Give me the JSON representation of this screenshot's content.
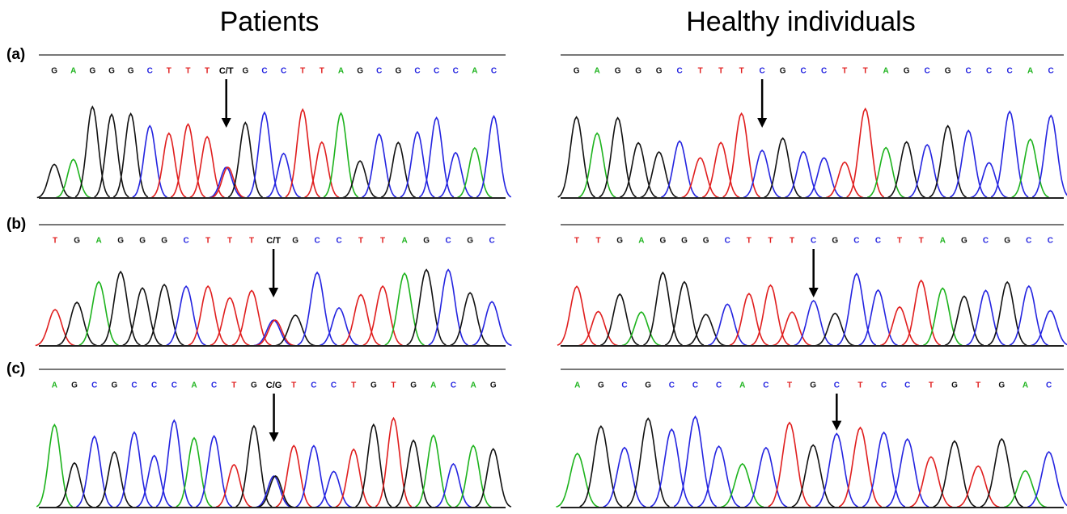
{
  "columns": [
    {
      "title": "Patients"
    },
    {
      "title": "Healthy individuals"
    }
  ],
  "rows": [
    {
      "label": "(a)",
      "panels": [
        {
          "bases": [
            "G",
            "A",
            "G",
            "G",
            "G",
            "C",
            "T",
            "T",
            "T",
            "C/T",
            "G",
            "C",
            "C",
            "T",
            "T",
            "A",
            "G",
            "C",
            "G",
            "C",
            "C",
            "C",
            "A",
            "C"
          ]
        },
        {
          "bases": [
            "G",
            "A",
            "G",
            "G",
            "G",
            "C",
            "T",
            "T",
            "T",
            "C",
            "G",
            "C",
            "C",
            "T",
            "T",
            "A",
            "G",
            "C",
            "G",
            "C",
            "C",
            "C",
            "A",
            "C"
          ]
        }
      ]
    },
    {
      "label": "(b)",
      "panels": [
        {
          "bases": [
            "T",
            "G",
            "A",
            "G",
            "G",
            "G",
            "C",
            "T",
            "T",
            "T",
            "C/T",
            "G",
            "C",
            "C",
            "T",
            "T",
            "A",
            "G",
            "C",
            "G",
            "C"
          ]
        },
        {
          "bases": [
            "T",
            "T",
            "G",
            "A",
            "G",
            "G",
            "G",
            "C",
            "T",
            "T",
            "T",
            "C",
            "G",
            "C",
            "C",
            "T",
            "T",
            "A",
            "G",
            "C",
            "G",
            "C",
            "C"
          ]
        }
      ]
    },
    {
      "label": "(c)",
      "panels": [
        {
          "bases": [
            "A",
            "G",
            "C",
            "G",
            "C",
            "C",
            "C",
            "A",
            "C",
            "T",
            "G",
            "C/G",
            "T",
            "C",
            "C",
            "T",
            "G",
            "T",
            "G",
            "A",
            "C",
            "A",
            "G"
          ]
        },
        {
          "bases": [
            "A",
            "G",
            "C",
            "G",
            "C",
            "C",
            "C",
            "A",
            "C",
            "T",
            "G",
            "C",
            "T",
            "C",
            "C",
            "T",
            "G",
            "T",
            "G",
            "A",
            "C"
          ]
        }
      ]
    }
  ]
}
